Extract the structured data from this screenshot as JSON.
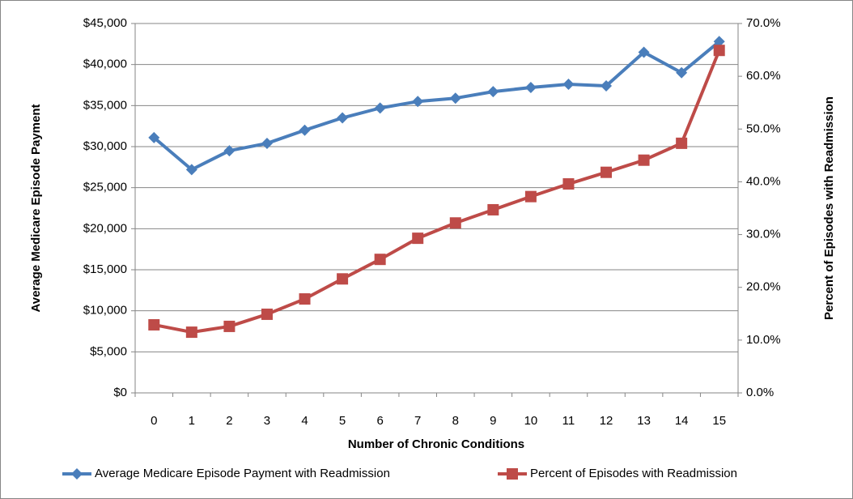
{
  "chart_data": {
    "type": "line",
    "x_label": "Number of Chronic Conditions",
    "y_label": "Average Medicare  Episode  Payment",
    "y2_label": "Percent of Episodes with Readmission",
    "categories": [
      "0",
      "1",
      "2",
      "3",
      "4",
      "5",
      "6",
      "7",
      "8",
      "9",
      "10",
      "11",
      "12",
      "13",
      "14",
      "15"
    ],
    "series": [
      {
        "name": "Average Medicare Episode Payment with Readmission",
        "color": "#4a7ebb",
        "marker": "diamond",
        "values": [
          31100,
          27200,
          29500,
          30400,
          32000,
          33500,
          34700,
          35500,
          35900,
          36700,
          37200,
          37600,
          37400,
          41500,
          39000,
          42800
        ]
      },
      {
        "name": "Percent of Episodes with Readmission",
        "color": "#be4b48",
        "marker": "square",
        "axis": "y2",
        "values": [
          12.9,
          11.5,
          12.6,
          14.9,
          17.8,
          21.6,
          25.3,
          29.3,
          32.2,
          34.7,
          37.2,
          39.6,
          41.8,
          44.1,
          47.3,
          64.9
        ]
      }
    ],
    "ylim": [
      0,
      45000
    ],
    "yticks": [
      {
        "value": 0,
        "label": "$0"
      },
      {
        "value": 5000,
        "label": "$5,000"
      },
      {
        "value": 10000,
        "label": "$10,000"
      },
      {
        "value": 15000,
        "label": "$15,000"
      },
      {
        "value": 20000,
        "label": "$20,000"
      },
      {
        "value": 25000,
        "label": "$25,000"
      },
      {
        "value": 30000,
        "label": "$30,000"
      },
      {
        "value": 35000,
        "label": "$35,000"
      },
      {
        "value": 40000,
        "label": "$40,000"
      },
      {
        "value": 45000,
        "label": "$45,000"
      }
    ],
    "y2lim": [
      0,
      70
    ],
    "y2ticks": [
      {
        "value": 0,
        "label": "0.0%"
      },
      {
        "value": 10,
        "label": "10.0%"
      },
      {
        "value": 20,
        "label": "20.0%"
      },
      {
        "value": 30,
        "label": "30.0%"
      },
      {
        "value": 40,
        "label": "40.0%"
      },
      {
        "value": 50,
        "label": "50.0%"
      },
      {
        "value": 60,
        "label": "60.0%"
      },
      {
        "value": 70,
        "label": "70.0%"
      }
    ],
    "grid": true,
    "legend": "bottom"
  }
}
